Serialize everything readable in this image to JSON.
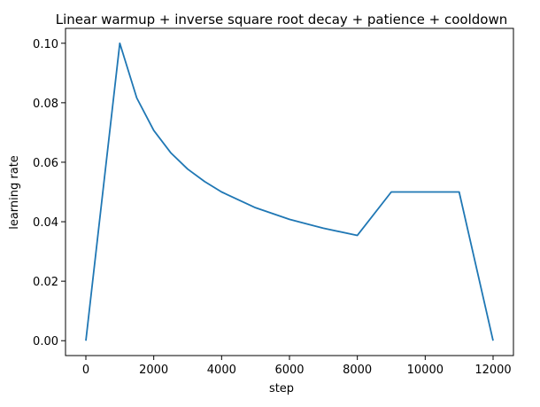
{
  "chart_data": {
    "type": "line",
    "title": "Linear warmup + inverse square root decay + patience + cooldown",
    "xlabel": "step",
    "ylabel": "learning rate",
    "xlim": [
      -600,
      12600
    ],
    "ylim": [
      -0.005,
      0.105
    ],
    "xticks": [
      0,
      2000,
      4000,
      6000,
      8000,
      10000,
      12000
    ],
    "yticks": [
      0.0,
      0.02,
      0.04,
      0.06,
      0.08,
      0.1
    ],
    "ytick_labels": [
      "0.00",
      "0.02",
      "0.04",
      "0.06",
      "0.08",
      "0.10"
    ],
    "grid": false,
    "legend": "none",
    "series": [
      {
        "color": "#1f77b4",
        "x": [
          0,
          1000,
          1500,
          2000,
          2500,
          3000,
          3500,
          4000,
          5000,
          6000,
          7000,
          8000,
          9000,
          11000,
          12000
        ],
        "y": [
          0.0,
          0.1,
          0.0816,
          0.0707,
          0.0632,
          0.0577,
          0.0535,
          0.05,
          0.0447,
          0.0408,
          0.0378,
          0.0354,
          0.05,
          0.05,
          0.0
        ]
      }
    ]
  }
}
